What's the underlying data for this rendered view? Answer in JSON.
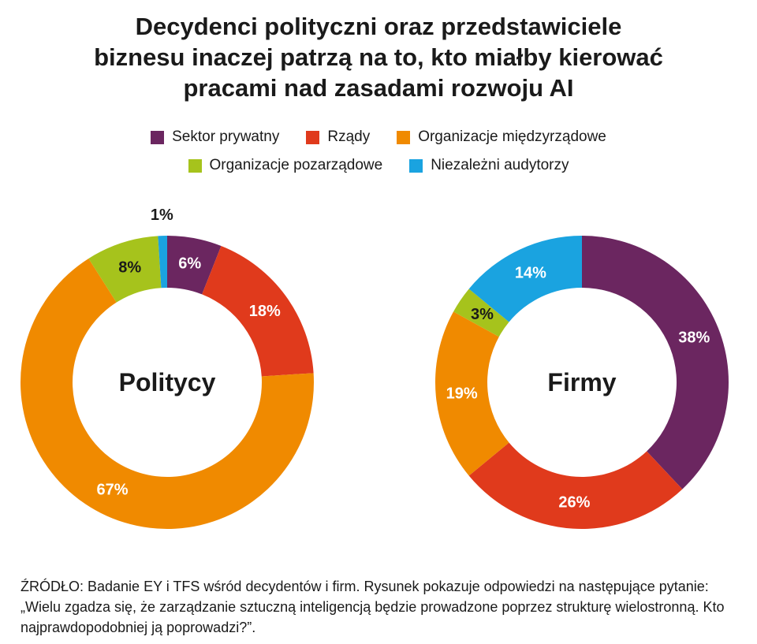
{
  "title_lines": [
    "Decydenci polityczni oraz przedstawiciele",
    "biznesu inaczej patrzą na to, kto miałby kierować",
    "pracami nad zasadami rozwoju AI"
  ],
  "legend": [
    {
      "label": "Sektor prywatny",
      "color": "#6b2660"
    },
    {
      "label": "Rządy",
      "color": "#e03a1c"
    },
    {
      "label": "Organizacje międzyrządowe",
      "color": "#f08a00"
    },
    {
      "label": "Organizacje pozarządowe",
      "color": "#a6c31c"
    },
    {
      "label": "Niezależni audytorzy",
      "color": "#1aa3e0"
    }
  ],
  "chart_data": [
    {
      "type": "pie",
      "title": "Politycy",
      "categories": [
        "Sektor prywatny",
        "Rządy",
        "Organizacje międzyrządowe",
        "Organizacje pozarządowe",
        "Niezależni audytorzy"
      ],
      "values": [
        6,
        18,
        67,
        8,
        1
      ],
      "labels": [
        "6%",
        "18%",
        "67%",
        "8%",
        "1%"
      ]
    },
    {
      "type": "pie",
      "title": "Firmy",
      "categories": [
        "Sektor prywatny",
        "Rządy",
        "Organizacje międzyrządowe",
        "Organizacje pozarządowe",
        "Niezależni audytorzy"
      ],
      "values": [
        38,
        26,
        19,
        3,
        14
      ],
      "labels": [
        "38%",
        "26%",
        "19%",
        "3%",
        "14%"
      ]
    }
  ],
  "source": "ŹRÓDŁO: Badanie EY i TFS wśród decydentów i firm. Rysunek pokazuje odpowiedzi na następujące pytanie: „Wielu zgadza się, że zarządzanie sztuczną inteligencją będzie prowadzone poprzez strukturę wielostronną. Kto najprawdopodobniej ją poprowadzi?”."
}
